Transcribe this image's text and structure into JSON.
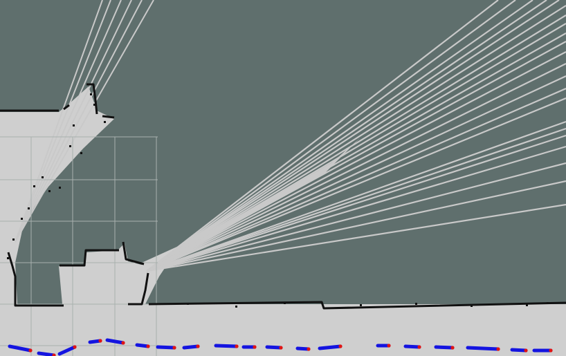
{
  "view": {
    "kind": "occupancy-grid-map",
    "colors": {
      "unknown": "#5f6f6d",
      "free": "#cfcfcf",
      "beam": "#c9c9c9",
      "obstacle": "#111111",
      "grid": "#a8b0ae",
      "path": "#1414e0",
      "pose": "#e01414"
    },
    "layers": [
      "occupancy-grid",
      "laser-beams",
      "grid",
      "planned-path",
      "pose-markers"
    ],
    "icons": [
      "path-segment-icon",
      "pose-marker-icon"
    ]
  }
}
